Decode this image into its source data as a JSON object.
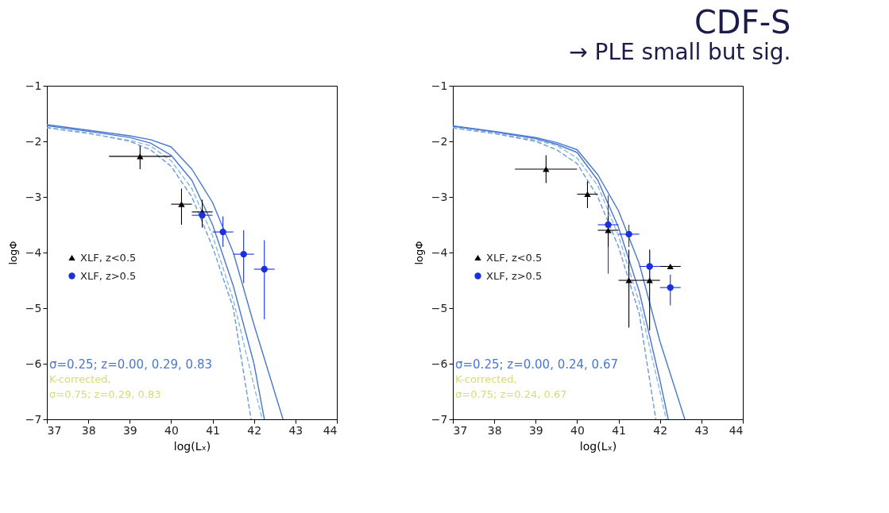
{
  "chart_data": [
    {
      "type": "scatter",
      "xlabel": "log(Lₓ)",
      "ylabel": "logΦ",
      "xlim": [
        37,
        44
      ],
      "ylim": [
        -7,
        -1
      ],
      "xticks": [
        37,
        38,
        39,
        40,
        41,
        42,
        43,
        44
      ],
      "yticks": [
        -7,
        -6,
        -5,
        -4,
        -3,
        -2,
        -1
      ],
      "legend": "left",
      "annotations": [
        "σ=0.25; z=0.00, 0.29, 0.83",
        "K-corrected,",
        "σ=0.75; z=0.29, 0.83"
      ],
      "series": [
        {
          "type": "line",
          "color": "#6a9ad8",
          "line_style": "dashed",
          "x": [
            37,
            38,
            39,
            39.5,
            40,
            40.5,
            41,
            41.5,
            41.93
          ],
          "values": [
            -1.75,
            -1.85,
            -2.0,
            -2.15,
            -2.45,
            -3.0,
            -3.9,
            -5.0,
            -7.0
          ]
        },
        {
          "type": "line",
          "color": "#8ab8e0",
          "line_style": "dashed",
          "x": [
            37,
            38,
            39,
            39.5,
            40,
            40.5,
            41,
            41.5,
            42,
            42.2
          ],
          "values": [
            -1.76,
            -1.86,
            -1.98,
            -2.08,
            -2.35,
            -2.85,
            -3.7,
            -4.85,
            -6.4,
            -7.0
          ]
        },
        {
          "type": "line",
          "color": "#4a78d0",
          "line_style": "solid",
          "x": [
            37,
            38,
            39,
            39.5,
            40,
            40.5,
            41,
            41.5,
            42,
            42.25
          ],
          "values": [
            -1.72,
            -1.82,
            -1.93,
            -2.03,
            -2.25,
            -2.7,
            -3.5,
            -4.6,
            -6.0,
            -7.0
          ]
        },
        {
          "type": "line",
          "color": "#4a78d0",
          "line_style": "solid",
          "x": [
            37,
            38,
            39,
            39.5,
            40,
            40.5,
            41,
            41.5,
            42,
            42.7
          ],
          "values": [
            -1.7,
            -1.8,
            -1.9,
            -1.97,
            -2.1,
            -2.5,
            -3.1,
            -4.0,
            -5.3,
            -7.0
          ]
        },
        {
          "type": "scatter",
          "name": "XLF, z<0.5",
          "color": "#000000",
          "marker": "triangle",
          "x": [
            39.25,
            40.25,
            40.75
          ],
          "values": [
            -2.27,
            -3.13,
            -3.27
          ],
          "errors": [
            [
              -2.5,
              -2.08
            ],
            [
              -3.5,
              -2.85
            ],
            [
              -3.55,
              -3.05
            ]
          ],
          "xerrors": [
            [
              38.5,
              40.0
            ],
            [
              40.0,
              40.5
            ],
            [
              40.5,
              41.0
            ]
          ]
        },
        {
          "type": "scatter",
          "name": "XLF, z>0.5",
          "color": "#1a2fe0",
          "marker": "circle",
          "x": [
            40.75,
            41.25,
            41.75,
            42.25
          ],
          "values": [
            -3.33,
            -3.63,
            -4.03,
            -4.3
          ],
          "errors": [
            null,
            [
              -3.9,
              -3.35
            ],
            [
              -4.55,
              -3.6
            ],
            [
              -5.2,
              -3.78
            ]
          ],
          "xerrors": [
            [
              40.5,
              41.0
            ],
            [
              41.0,
              41.5
            ],
            [
              41.5,
              42.0
            ],
            [
              42.0,
              42.5
            ]
          ]
        }
      ]
    },
    {
      "type": "scatter",
      "title": "CDF-S",
      "subtitle": "→ PLE small but sig.",
      "xlabel": "log(Lₓ)",
      "ylabel": "logΦ",
      "xlim": [
        37,
        44
      ],
      "ylim": [
        -7,
        -1
      ],
      "xticks": [
        37,
        38,
        39,
        40,
        41,
        42,
        43,
        44
      ],
      "yticks": [
        -7,
        -6,
        -5,
        -4,
        -3,
        -2,
        -1
      ],
      "legend": "left",
      "annotations": [
        "σ=0.25; z=0.00, 0.24, 0.67",
        "K-corrected,",
        "σ=0.75; z=0.24, 0.67"
      ],
      "series": [
        {
          "type": "line",
          "color": "#6a9ad8",
          "line_style": "dashed",
          "x": [
            37,
            38,
            39,
            39.5,
            40,
            40.5,
            41,
            41.5,
            41.9
          ],
          "values": [
            -1.76,
            -1.86,
            -2.0,
            -2.15,
            -2.4,
            -3.0,
            -3.9,
            -5.1,
            -7.0
          ]
        },
        {
          "type": "line",
          "color": "#8ab8e0",
          "line_style": "dashed",
          "x": [
            37,
            38,
            39,
            39.5,
            40,
            40.5,
            41,
            41.5,
            42,
            42.15
          ],
          "values": [
            -1.75,
            -1.85,
            -1.98,
            -2.07,
            -2.3,
            -2.8,
            -3.7,
            -4.9,
            -6.5,
            -7.0
          ]
        },
        {
          "type": "line",
          "color": "#4a78d0",
          "line_style": "solid",
          "x": [
            37,
            38,
            39,
            39.5,
            40,
            40.5,
            41,
            41.5,
            42,
            42.2
          ],
          "values": [
            -1.73,
            -1.83,
            -1.95,
            -2.05,
            -2.2,
            -2.7,
            -3.55,
            -4.7,
            -6.3,
            -7.0
          ]
        },
        {
          "type": "line",
          "color": "#4a78d0",
          "line_style": "solid",
          "x": [
            37,
            38,
            39,
            39.5,
            40,
            40.5,
            41,
            41.5,
            42,
            42.6
          ],
          "values": [
            -1.72,
            -1.82,
            -1.93,
            -2.02,
            -2.15,
            -2.6,
            -3.25,
            -4.2,
            -5.6,
            -7.0
          ]
        },
        {
          "type": "scatter",
          "name": "XLF, z<0.5",
          "color": "#000000",
          "marker": "triangle",
          "x": [
            39.25,
            40.25,
            40.75,
            41.25,
            41.75,
            42.25
          ],
          "values": [
            -2.5,
            -2.95,
            -3.6,
            -4.5,
            -4.5,
            -4.25
          ],
          "errors": [
            [
              -2.75,
              -2.25
            ],
            [
              -3.2,
              -2.72
            ],
            [
              -3.9,
              -3.35
            ],
            [
              -5.35,
              -3.95
            ],
            [
              -5.4,
              -3.95
            ],
            null
          ],
          "xerrors": [
            [
              38.5,
              40.0
            ],
            [
              40.0,
              40.5
            ],
            [
              40.5,
              41.0
            ],
            [
              41.0,
              41.5
            ],
            [
              41.5,
              42.0
            ],
            [
              42.0,
              42.5
            ]
          ]
        },
        {
          "type": "scatter",
          "name": "XLF, z>0.5",
          "color": "#1a2fe0",
          "marker": "circle",
          "x": [
            40.75,
            41.25,
            41.75,
            42.25
          ],
          "values": [
            -3.5,
            -3.67,
            -4.25,
            -4.63
          ],
          "errors": [
            [
              -4.38,
              -2.97
            ],
            [
              -3.9,
              -3.5
            ],
            [
              -4.5,
              -3.95
            ],
            [
              -4.95,
              -4.4
            ]
          ],
          "xerrors": [
            [
              40.5,
              41.0
            ],
            [
              41.0,
              41.5
            ],
            [
              41.5,
              42.0
            ],
            [
              42.0,
              42.5
            ]
          ]
        }
      ]
    }
  ]
}
